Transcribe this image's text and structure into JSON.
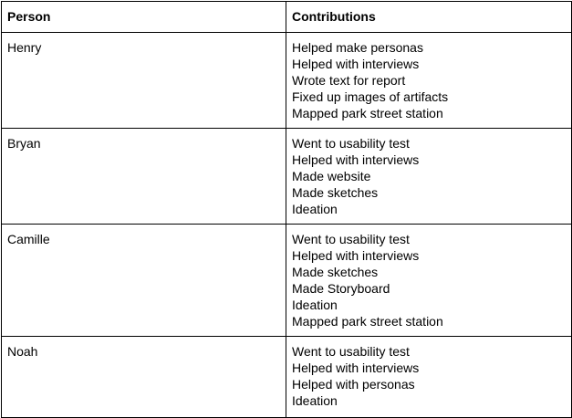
{
  "table": {
    "headers": [
      "Person",
      "Contributions"
    ],
    "rows": [
      {
        "person": "Henry",
        "contributions": [
          "Helped make personas",
          "Helped with interviews",
          "Wrote text for report",
          "Fixed up images of artifacts",
          "Mapped park street station"
        ]
      },
      {
        "person": "Bryan",
        "contributions": [
          "Went to usability test",
          "Helped with interviews",
          "Made website",
          "Made sketches",
          "Ideation"
        ]
      },
      {
        "person": "Camille",
        "contributions": [
          "Went to usability test",
          "Helped with interviews",
          "Made sketches",
          "Made Storyboard",
          "Ideation",
          "Mapped park street station"
        ]
      },
      {
        "person": "Noah",
        "contributions": [
          "Went to usability test",
          "Helped with interviews",
          "Helped with personas",
          "Ideation"
        ]
      }
    ]
  }
}
